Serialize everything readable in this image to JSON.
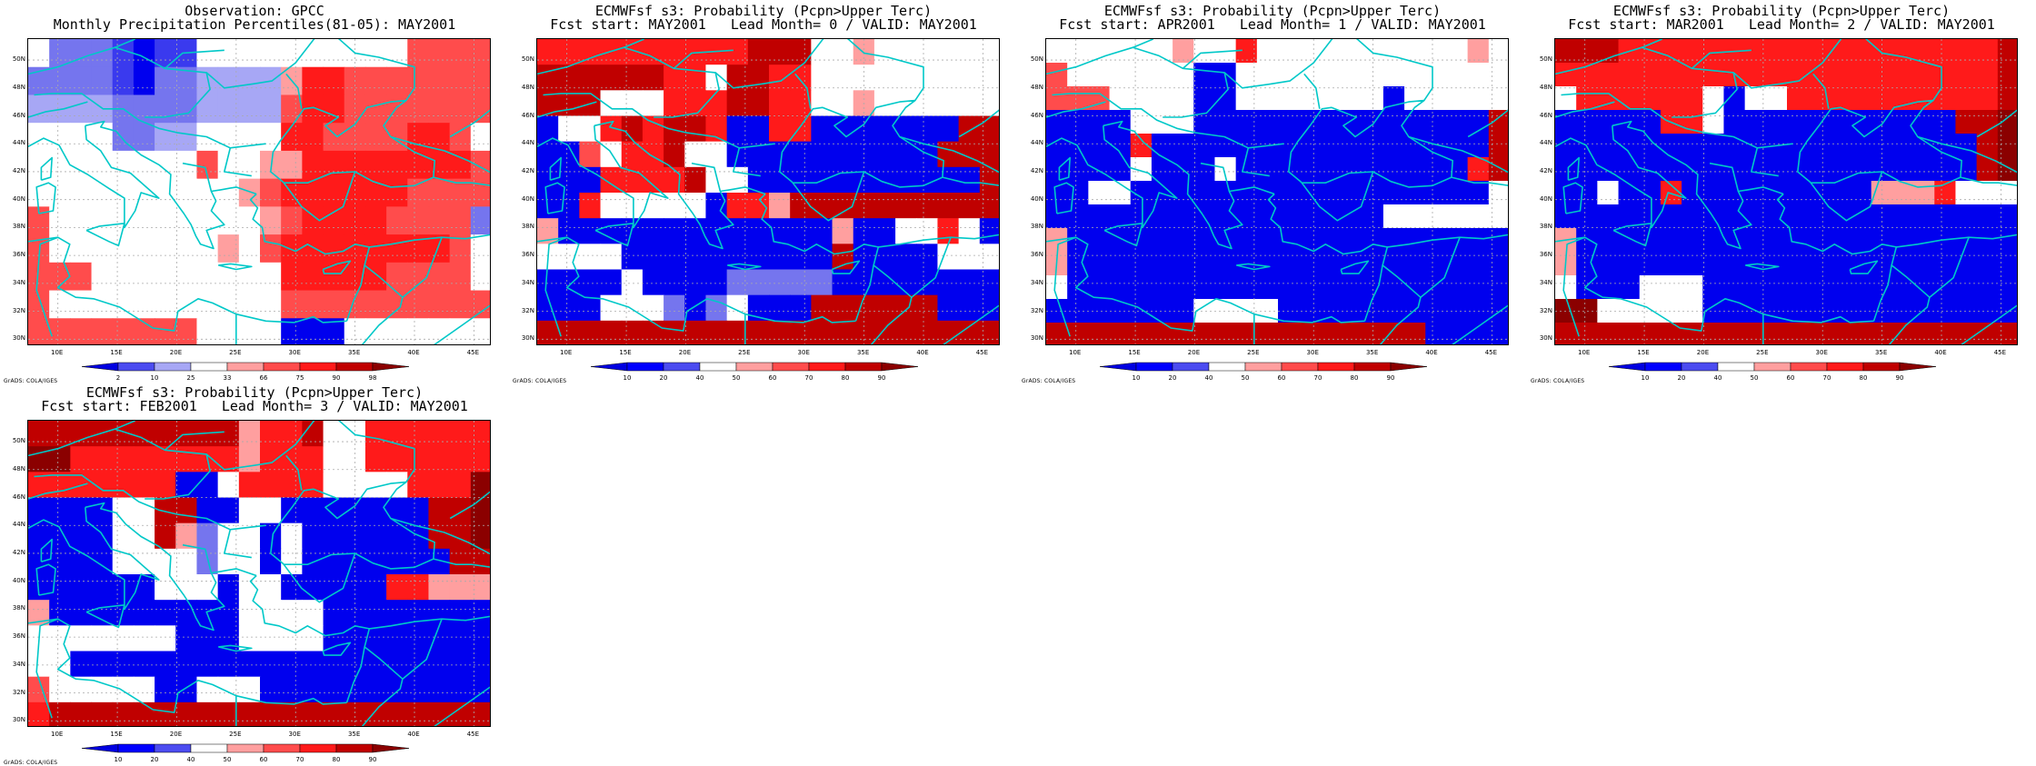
{
  "credit": "GrADS: COLA/IGES",
  "axes": {
    "lon": [
      7.5,
      46.5
    ],
    "lat": [
      29.5,
      51.5
    ],
    "x_ticks": [
      "10E",
      "15E",
      "20E",
      "25E",
      "30E",
      "35E",
      "40E",
      "45E"
    ],
    "x_tick_values": [
      10,
      15,
      20,
      25,
      30,
      35,
      40,
      45
    ],
    "y_ticks": [
      "30N",
      "32N",
      "34N",
      "36N",
      "38N",
      "40N",
      "42N",
      "44N",
      "46N",
      "48N",
      "50N"
    ],
    "y_tick_values": [
      30,
      32,
      34,
      36,
      38,
      40,
      42,
      44,
      46,
      48,
      50
    ],
    "grid": true
  },
  "colorbars": {
    "obs": {
      "labels": [
        "2",
        "10",
        "25",
        "33",
        "66",
        "75",
        "90",
        "98"
      ],
      "colors": [
        "#0000e0",
        "#4c4cf0",
        "#a7a7f5",
        "#ffffff",
        "#ff9f9f",
        "#ff4c4c",
        "#ff1a1a",
        "#c00000",
        "#8b0000"
      ]
    },
    "prob": {
      "labels": [
        "10",
        "20",
        "40",
        "50",
        "60",
        "70",
        "80",
        "90"
      ],
      "colors": [
        "#0000e0",
        "#0000ff",
        "#4c4cf0",
        "#ffffff",
        "#ff9f9f",
        "#ff4c4c",
        "#ff1a1a",
        "#c00000",
        "#8b0000"
      ]
    }
  },
  "palette": {
    "D": "#0000ee",
    "B": "#3a3aee",
    "b": "#7575ee",
    "L": "#a7a7f5",
    "W": "#ffffff",
    "p": "#ff9f9f",
    "r": "#ff4c4c",
    "R": "#ff1a1a",
    "K": "#c00000",
    "X": "#8b0000"
  },
  "coast_color": "#00c8c8",
  "panels": [
    {
      "title_line1": "Observation: GPCC",
      "title_line2": "Monthly Precipitation Percentiles(81-05): MAY2001",
      "colorbar": "obs",
      "grid": [
        "WbbbBDBBWWWWWWWWWWrrrr",
        "bbbbBDbbLLLLpRRrrrrrrr",
        "LLLLbbbbLLLLrRRrrrrrrr",
        "WWWWbbLLWWWWRRrrrrRRrW",
        "WWWWWWWWrWWppRRRRRRRRr",
        "WWWWWWWWWWprRRRRRRrrrr",
        "rWWWWWWWWWWprRRRRrrrrb",
        "rWWWWWWWWpWrRRRRRRRRrW",
        "rrrWWWWWWWWWRRRRRrrrrW",
        "rWWWWWWWWWWWrrrrrrrrrr",
        "rrrrrrrrWWWWDDDWWWWWWW"
      ]
    },
    {
      "title_line1": "ECMWFsf s3: Probability (Pcpn>Upper Terc)",
      "title_line2": "Fcst start: MAY2001   Lead Month= 0 / VALID: MAY2001",
      "colorbar": "prob",
      "grid": [
        "RRRRRRRRRRKKKWWpWWWWWW",
        "KKKKKKRRWKKRRWWWWWWWWW",
        "KKKWWWRRRKKRRWWpWWWWWW",
        "DWWRKRKKRDDRRDDDDDDDKK",
        "DDrWRRKWWDDDDDDDDDDKKK",
        "DDDRRRRKWWDDDDDDDDDDDK",
        "DDRWWWWWDRRpKKKKKKKKKK",
        "pDDDDDDDDDDDDDpDDWWRWD",
        "WWWWDDDDDDDDDDKDDDDWWW",
        "DDDDWDDDDbbbbbDDDDDDDD",
        "DDDWWWbDbWDDDKKKKKKDDD",
        "KKKKKKKKKKKKKKKKKKKKKK"
      ]
    },
    {
      "title_line1": "ECMWFsf s3: Probability (Pcpn>Upper Terc)",
      "title_line2": "Fcst start: APR2001   Lead Month= 1 / VALID: MAY2001",
      "colorbar": "prob",
      "grid": [
        "WWWWWWpWWRWWWWWWWWWWpW",
        "rWWWWWWDDWWWWWWWWWWWWW",
        "rrrWWWWDDWWWWWWWDWWWWW",
        "DDDDWWWDDDDDDDDDDDDDDK",
        "DDDDRDDDDDDDDDDDDDDDDK",
        "DDDDWDDDWDDDDDDDDDDDRK",
        "DDWWDDDDDDDDDDDDDDDDDW",
        "DDDDDDDDDDDDDDDDWWWWWW",
        "pDDDDDDDDDDDDDDDDDDDDD",
        "pDDDDDDDDDDDDDDDDDDDDD",
        "WDDDDDDDDDDDDDDDDDDDDD",
        "DDDDDDDWWWWDDDDDDDDDDD",
        "KKKKKKKKKKKKKKKKKKDDDD"
      ]
    },
    {
      "title_line1": "ECMWFsf s3: Probability (Pcpn>Upper Terc)",
      "title_line2": "Fcst start: MAR2001   Lead Month= 2 / VALID: MAY2001",
      "colorbar": "prob",
      "grid": [
        "KKKRRRRRRRRRRRRRRRRRRK",
        "RRRRRRRRRRRRRRRRRRRRRK",
        "WRRRRRRWDWWRRRRRRRRRRK",
        "DDDDDRRWDDDDDDDDDDDKKX",
        "DDDDDDDDDDDDDDDDDDDDKX",
        "DDDDDDDDDDDDDDDDDDDDKX",
        "DDWDDRDDDDDDDDDpppRWWW",
        "DDDDDDDDDDDDDDDDDDDDDD",
        "pDDDDDDDDDDDDDDDDDDDDD",
        "pDDDDDDDDDDDDDDDDDDDDD",
        "WDDDWWWDDDDDDDDDDDDDDD",
        "XXWWWWWDDDDDDDDDDDDDDD",
        "KKKKKKKKKKKKKKKKKKKKKK"
      ]
    },
    {
      "title_line1": "ECMWFsf s3: Probability (Pcpn>Upper Terc)",
      "title_line2": "Fcst start: FEB2001   Lead Month= 3 / VALID: MAY2001",
      "colorbar": "prob",
      "grid": [
        "KKKKKKKKKKpRRKWWRRRRRR",
        "XXRRRRRRRRpRRRWWRRRRRR",
        "RRRRRRRDDWRRRRWWWWRRRX",
        "DDDDWWKKDDWWDDDDDDDKKX",
        "DDDDWWKpbWWDWDDDDDDKKX",
        "DDDDWWWWbWWDWDDDDDDDKK",
        "DDDDDDWWWDWWDDDDDRRppp",
        "pDDDDDDDDDWWWWDDDDDDDD",
        "WWWWWWWDDDWWWWDDDDDDDD",
        "WWDDDDDDDDDDDDDDDDDDDD",
        "rWWWWWDDWWWDDDDDDDDDDD",
        "RKKKKKKKKKKKKKKKKKKKKK"
      ]
    }
  ]
}
